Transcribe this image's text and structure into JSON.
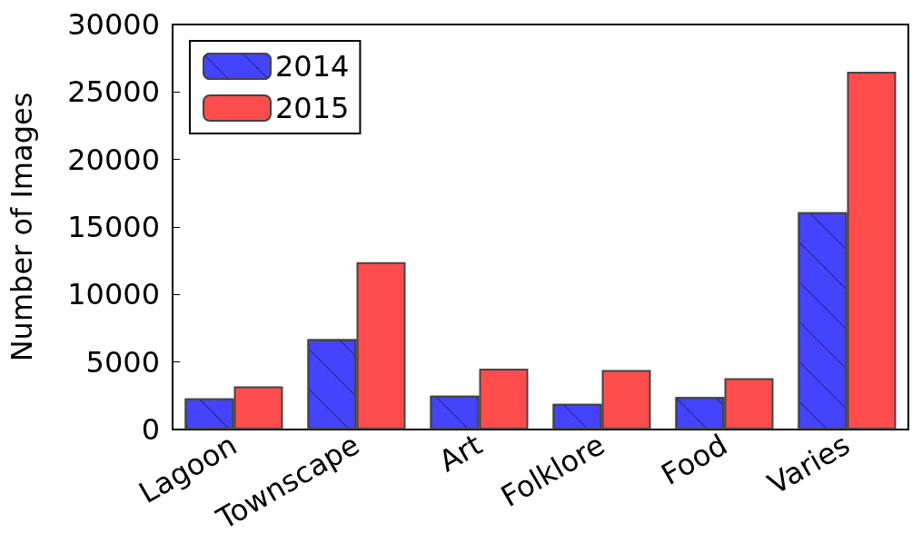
{
  "chart_data": {
    "type": "bar",
    "ylabel": "Number of Images",
    "categories": [
      "Lagoon",
      "Townscape",
      "Art",
      "Folklore",
      "Food",
      "Varies"
    ],
    "series": [
      {
        "name": "2014",
        "color": "#4444ff",
        "values": [
          2300,
          6700,
          2500,
          1900,
          2400,
          16100
        ]
      },
      {
        "name": "2015",
        "color": "#ff4c4c",
        "values": [
          3200,
          12400,
          4500,
          4400,
          3800,
          26500
        ]
      }
    ],
    "ylim": [
      0,
      30000
    ],
    "yticks": [
      0,
      5000,
      10000,
      15000,
      20000,
      25000,
      30000
    ],
    "grid": false,
    "legend": "top left"
  }
}
